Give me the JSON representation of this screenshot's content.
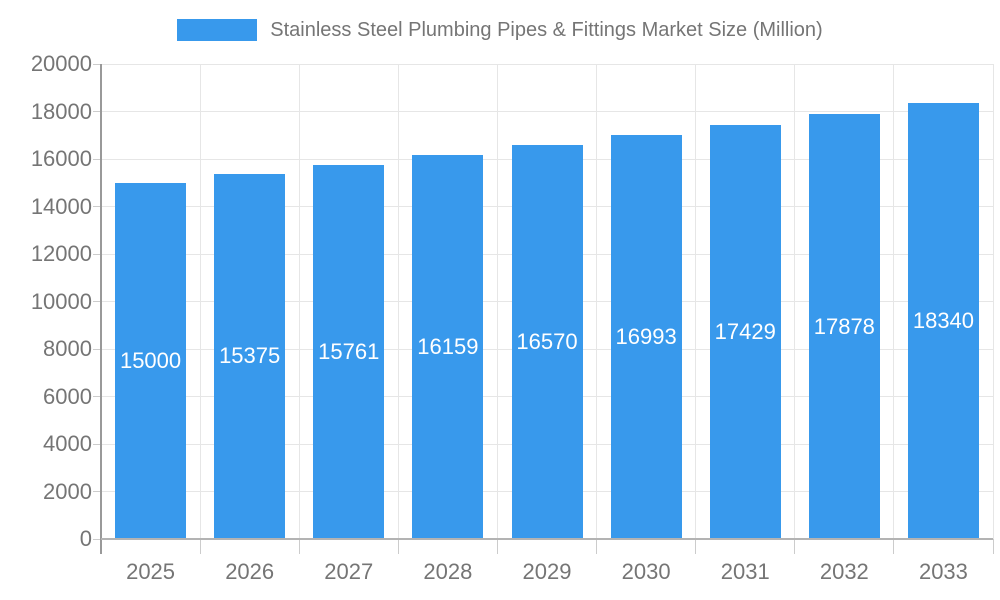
{
  "legend": {
    "label": "Stainless Steel Plumbing Pipes & Fittings Market Size (Million)"
  },
  "colors": {
    "bar": "#3899EC",
    "grid": "#E6E6E6",
    "y_axis": "#999999",
    "x_axis": "#B3B3B3",
    "tick": "#CCCCCC",
    "axis_text": "#757575",
    "bar_label_text": "#FFFFFF",
    "background": "#FFFFFF"
  },
  "chart_data": {
    "type": "bar",
    "title": "Stainless Steel Plumbing Pipes & Fittings Market Size (Million)",
    "categories": [
      "2025",
      "2026",
      "2027",
      "2028",
      "2029",
      "2030",
      "2031",
      "2032",
      "2033"
    ],
    "values": [
      15000,
      15375,
      15761,
      16159,
      16570,
      16993,
      17429,
      17878,
      18340
    ],
    "bar_labels": [
      "15000",
      "15375",
      "15761",
      "16159",
      "16570",
      "16993",
      "17429",
      "17878",
      "18340"
    ],
    "xlabel": "",
    "ylabel": "",
    "ylim": [
      0,
      20000
    ],
    "yticks": [
      0,
      2000,
      4000,
      6000,
      8000,
      10000,
      12000,
      14000,
      16000,
      18000,
      20000
    ],
    "ytick_labels": [
      "0",
      "2000",
      "4000",
      "6000",
      "8000",
      "10000",
      "12000",
      "14000",
      "16000",
      "18000",
      "20000"
    ],
    "grid": true,
    "legend_position": "top",
    "bar_value_label_position": "center-inside"
  }
}
